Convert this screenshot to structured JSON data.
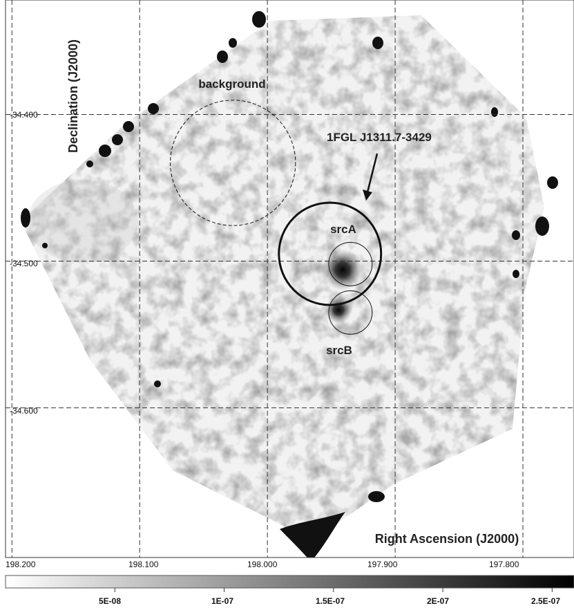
{
  "chart_data": {
    "type": "heatmap",
    "title": "",
    "xlabel": "Right Ascension (J2000)",
    "ylabel": "Declination (J2000)",
    "x_ticks": [
      198.2,
      198.1,
      198.0,
      197.9,
      197.8
    ],
    "x_tick_labels": [
      "198.200",
      "198.100",
      "198.000",
      "197.900",
      "197.800"
    ],
    "y_ticks": [
      -34.4,
      -34.5,
      -34.6
    ],
    "y_tick_labels": [
      "-34.400",
      "-34.500",
      "-34.600"
    ],
    "xlim": [
      198.205,
      197.76
    ],
    "ylim": [
      -34.702,
      -34.322
    ],
    "grid": true,
    "colorbar": {
      "range": [
        0,
        2.6e-07
      ],
      "tick_values": [
        5e-08,
        1e-07,
        1.5e-07,
        2e-07,
        2.5e-07
      ],
      "tick_labels": [
        "5E-08",
        "1E-07",
        "1.5E-07",
        "2E-07",
        "2.5E-07"
      ],
      "colormap": "white-to-black"
    },
    "regions": [
      {
        "name": "background",
        "ra": 198.027,
        "dec": -34.433,
        "radius_deg": 0.049,
        "style": "dashed"
      },
      {
        "name": "1FGL J1311.7-3429",
        "ra": 197.951,
        "dec": -34.495,
        "radius_deg": 0.04,
        "style": "thick"
      },
      {
        "name": "srcA",
        "ra": 197.935,
        "dec": -34.502,
        "radius_deg": 0.017,
        "style": "thin"
      },
      {
        "name": "srcB",
        "ra": 197.935,
        "dec": -34.535,
        "radius_deg": 0.017,
        "style": "thin"
      }
    ],
    "annotations": [
      "background",
      "1FGL J1311.7-3429",
      "srcA",
      "srcB"
    ],
    "point_sources": [
      {
        "ra": 197.933,
        "dec": -34.507,
        "intensity": 1.0
      },
      {
        "ra": 197.938,
        "dec": -34.533,
        "intensity": 0.8
      }
    ]
  }
}
